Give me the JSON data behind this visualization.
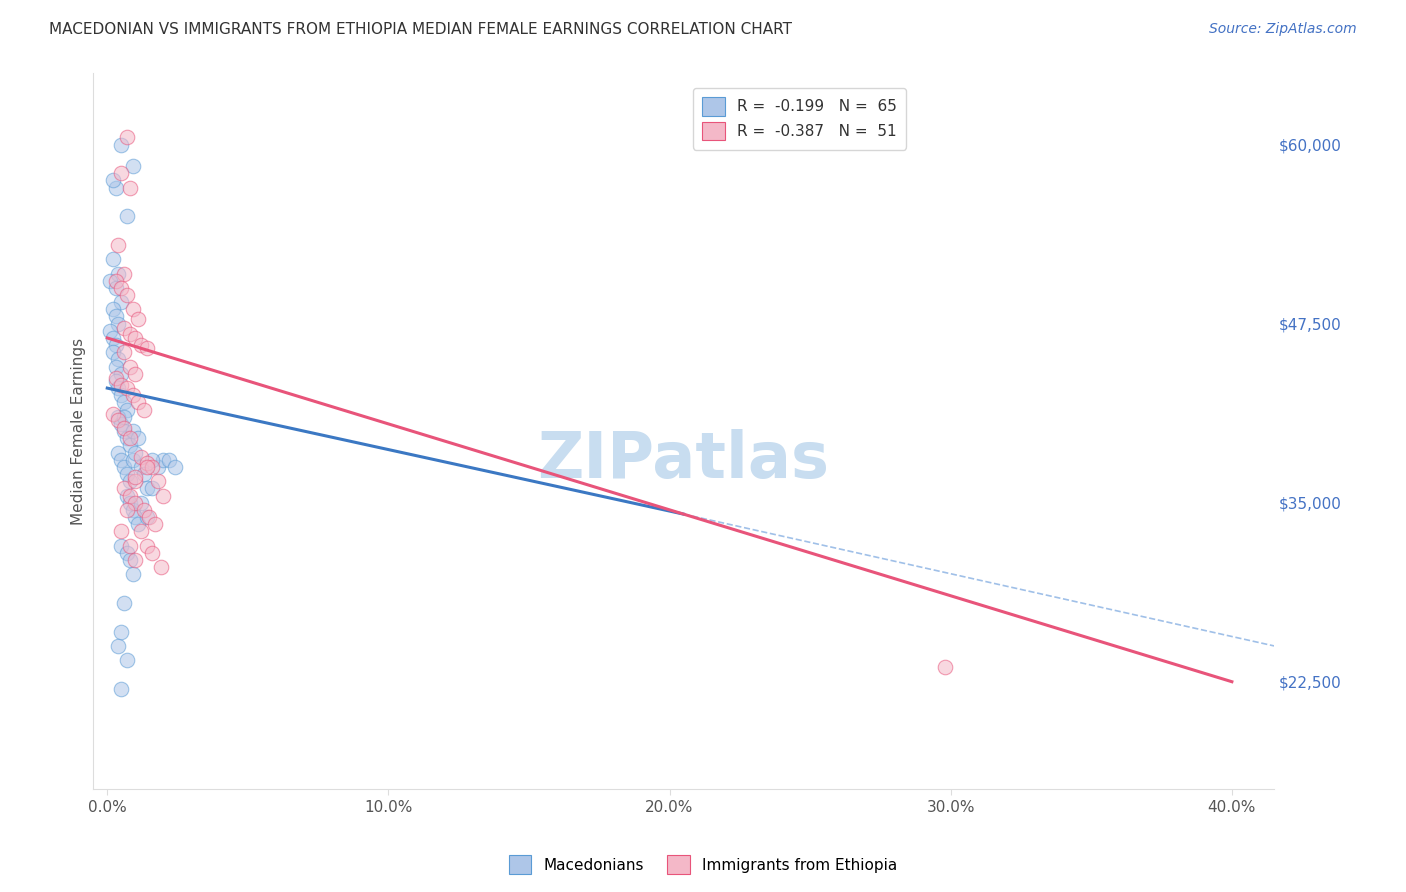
{
  "title": "MACEDONIAN VS IMMIGRANTS FROM ETHIOPIA MEDIAN FEMALE EARNINGS CORRELATION CHART",
  "source": "Source: ZipAtlas.com",
  "xlabel_ticks": [
    "0.0%",
    "10.0%",
    "20.0%",
    "30.0%",
    "40.0%"
  ],
  "xlabel_tick_vals": [
    0.0,
    0.1,
    0.2,
    0.3,
    0.4
  ],
  "ylabel": "Median Female Earnings",
  "ytick_vals": [
    22500,
    35000,
    47500,
    60000
  ],
  "ytick_labels": [
    "$22,500",
    "$35,000",
    "$47,500",
    "$60,000"
  ],
  "xlim": [
    -0.005,
    0.415
  ],
  "ylim": [
    15000,
    65000
  ],
  "legend_entries": [
    {
      "label": "R =  -0.199   N =  65",
      "color": "#aec6e8",
      "edge_color": "#5a9bd5"
    },
    {
      "label": "R =  -0.387   N =  51",
      "color": "#f4b8c8",
      "edge_color": "#e8547a"
    }
  ],
  "blue_scatter_x": [
    0.005,
    0.003,
    0.002,
    0.007,
    0.009,
    0.002,
    0.004,
    0.001,
    0.003,
    0.005,
    0.002,
    0.003,
    0.004,
    0.001,
    0.002,
    0.003,
    0.002,
    0.004,
    0.003,
    0.005,
    0.003,
    0.004,
    0.005,
    0.006,
    0.007,
    0.004,
    0.005,
    0.006,
    0.007,
    0.008,
    0.004,
    0.005,
    0.006,
    0.007,
    0.008,
    0.009,
    0.01,
    0.012,
    0.013,
    0.014,
    0.007,
    0.008,
    0.009,
    0.01,
    0.011,
    0.012,
    0.014,
    0.016,
    0.018,
    0.02,
    0.005,
    0.007,
    0.008,
    0.009,
    0.022,
    0.024,
    0.006,
    0.004,
    0.005,
    0.007,
    0.009,
    0.011,
    0.016,
    0.005,
    0.006
  ],
  "blue_scatter_y": [
    60000,
    57000,
    57500,
    55000,
    58500,
    52000,
    51000,
    50500,
    50000,
    49000,
    48500,
    48000,
    47500,
    47000,
    46500,
    46000,
    45500,
    45000,
    44500,
    44000,
    43500,
    43000,
    42500,
    42000,
    41500,
    41000,
    40500,
    40000,
    39500,
    39000,
    38500,
    38000,
    37500,
    37000,
    36500,
    38000,
    38500,
    37500,
    37000,
    36000,
    35500,
    35000,
    34500,
    34000,
    33500,
    35000,
    34000,
    36000,
    37500,
    38000,
    32000,
    31500,
    31000,
    30000,
    38000,
    37500,
    28000,
    25000,
    26000,
    24000,
    40000,
    39500,
    38000,
    22000,
    41000
  ],
  "pink_scatter_x": [
    0.007,
    0.005,
    0.008,
    0.004,
    0.006,
    0.003,
    0.005,
    0.007,
    0.009,
    0.011,
    0.006,
    0.008,
    0.01,
    0.012,
    0.014,
    0.006,
    0.008,
    0.01,
    0.003,
    0.005,
    0.007,
    0.009,
    0.011,
    0.013,
    0.002,
    0.004,
    0.006,
    0.008,
    0.012,
    0.014,
    0.016,
    0.018,
    0.006,
    0.008,
    0.01,
    0.013,
    0.015,
    0.017,
    0.005,
    0.007,
    0.01,
    0.012,
    0.014,
    0.016,
    0.019,
    0.014,
    0.01,
    0.02,
    0.298,
    0.008,
    0.01
  ],
  "pink_scatter_y": [
    60500,
    58000,
    57000,
    53000,
    51000,
    50500,
    50000,
    49500,
    48500,
    47800,
    47200,
    46800,
    46500,
    46000,
    45800,
    45500,
    44500,
    44000,
    43700,
    43200,
    43000,
    42500,
    42000,
    41500,
    41200,
    40800,
    40200,
    39500,
    38200,
    37800,
    37500,
    36500,
    36000,
    35500,
    35000,
    34500,
    34000,
    33500,
    33000,
    34500,
    36500,
    33000,
    32000,
    31500,
    30500,
    37500,
    36800,
    35500,
    23500,
    32000,
    31000
  ],
  "blue_line_x": [
    0.0,
    0.205
  ],
  "blue_line_y": [
    43000,
    34200
  ],
  "pink_line_x": [
    0.0,
    0.4
  ],
  "pink_line_y": [
    46500,
    22500
  ],
  "dashed_line_x": [
    0.205,
    0.415
  ],
  "dashed_line_y": [
    34200,
    25000
  ],
  "scatter_size": 110,
  "scatter_alpha": 0.55,
  "blue_scatter_color": "#aec6e8",
  "blue_scatter_edge": "#5a9bd5",
  "pink_scatter_color": "#f4b8c8",
  "pink_scatter_edge": "#e8547a",
  "blue_line_color": "#3b78c3",
  "pink_line_color": "#e8547a",
  "dashed_line_color": "#a0c0e8",
  "watermark": "ZIPatlas",
  "watermark_color": "#c8ddf0",
  "grid_color": "#dddddd",
  "background_color": "#ffffff",
  "title_fontsize": 11,
  "axis_label_fontsize": 11,
  "tick_fontsize": 11,
  "legend_fontsize": 11,
  "source_fontsize": 10
}
